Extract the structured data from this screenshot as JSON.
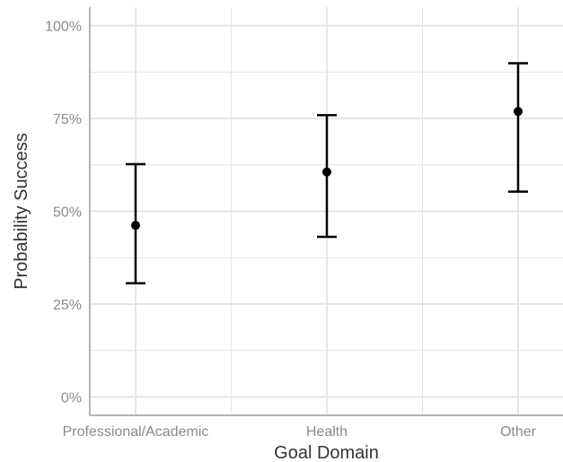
{
  "chart_data": {
    "type": "scatter",
    "subtype": "point-with-error-bars",
    "title": "",
    "xlabel": "Goal Domain",
    "ylabel": "Probability Success",
    "categories": [
      "Professional/Academic",
      "Health",
      "Other"
    ],
    "series": [
      {
        "values": [
          0.462,
          0.606,
          0.769
        ],
        "lower": [
          0.306,
          0.431,
          0.553
        ],
        "upper": [
          0.627,
          0.759,
          0.899
        ]
      }
    ],
    "ylim": [
      -0.05,
      1.05
    ],
    "y_ticks": [
      0,
      0.25,
      0.5,
      0.75,
      1.0
    ],
    "y_tick_labels": [
      "0%",
      "25%",
      "50%",
      "75%",
      "100%"
    ],
    "grid": true,
    "legend": "none",
    "colors": {
      "points": "#000000",
      "grid": "#e5e5e5",
      "axis": "#b3b3b3"
    }
  }
}
